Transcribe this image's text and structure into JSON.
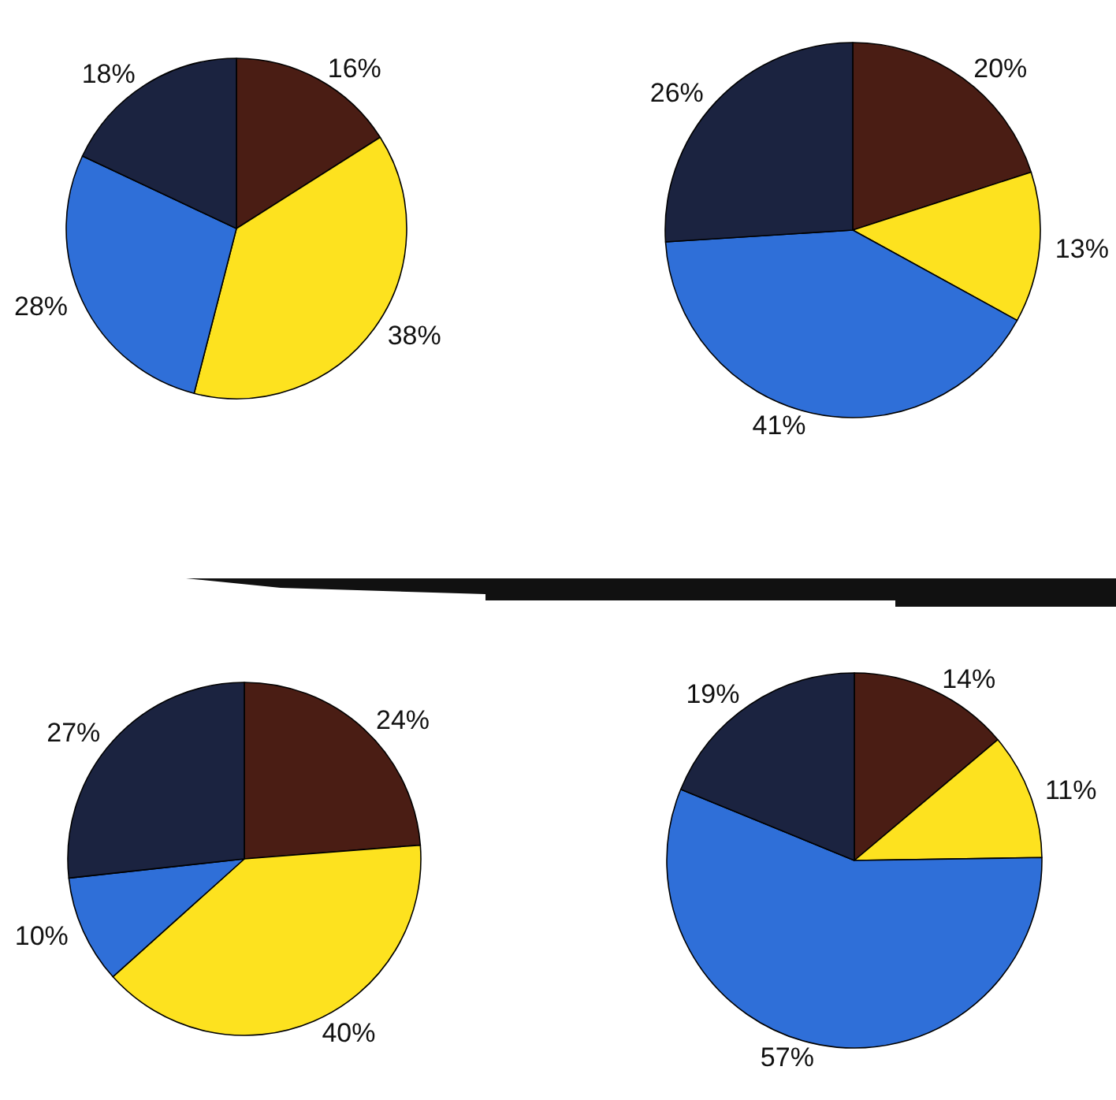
{
  "chart_data": [
    {
      "type": "pie",
      "categories": [
        null,
        null,
        null,
        null
      ],
      "values": [
        16,
        38,
        28,
        18
      ],
      "value_labels": [
        "16%",
        "38%",
        "28%",
        "18%"
      ],
      "colors": [
        "#4a1d14",
        "#fde21f",
        "#2f6fd8",
        "#1b2340"
      ]
    },
    {
      "type": "pie",
      "categories": [
        null,
        null,
        null,
        null
      ],
      "values": [
        20,
        13,
        41,
        26
      ],
      "value_labels": [
        "20%",
        "13%",
        "41%",
        "26%"
      ],
      "colors": [
        "#4a1d14",
        "#fde21f",
        "#2f6fd8",
        "#1b2340"
      ]
    },
    {
      "type": "pie",
      "categories": [
        null,
        null,
        null,
        null
      ],
      "values": [
        24,
        40,
        10,
        27
      ],
      "value_labels": [
        "24%",
        "40%",
        "10%",
        "27%"
      ],
      "colors": [
        "#4a1d14",
        "#fde21f",
        "#2f6fd8",
        "#1b2340"
      ]
    },
    {
      "type": "pie",
      "categories": [
        null,
        null,
        null,
        null
      ],
      "values": [
        14,
        11,
        57,
        19
      ],
      "value_labels": [
        "14%",
        "11%",
        "57%",
        "19%"
      ],
      "colors": [
        "#4a1d14",
        "#fde21f",
        "#2f6fd8",
        "#1b2340"
      ]
    }
  ]
}
